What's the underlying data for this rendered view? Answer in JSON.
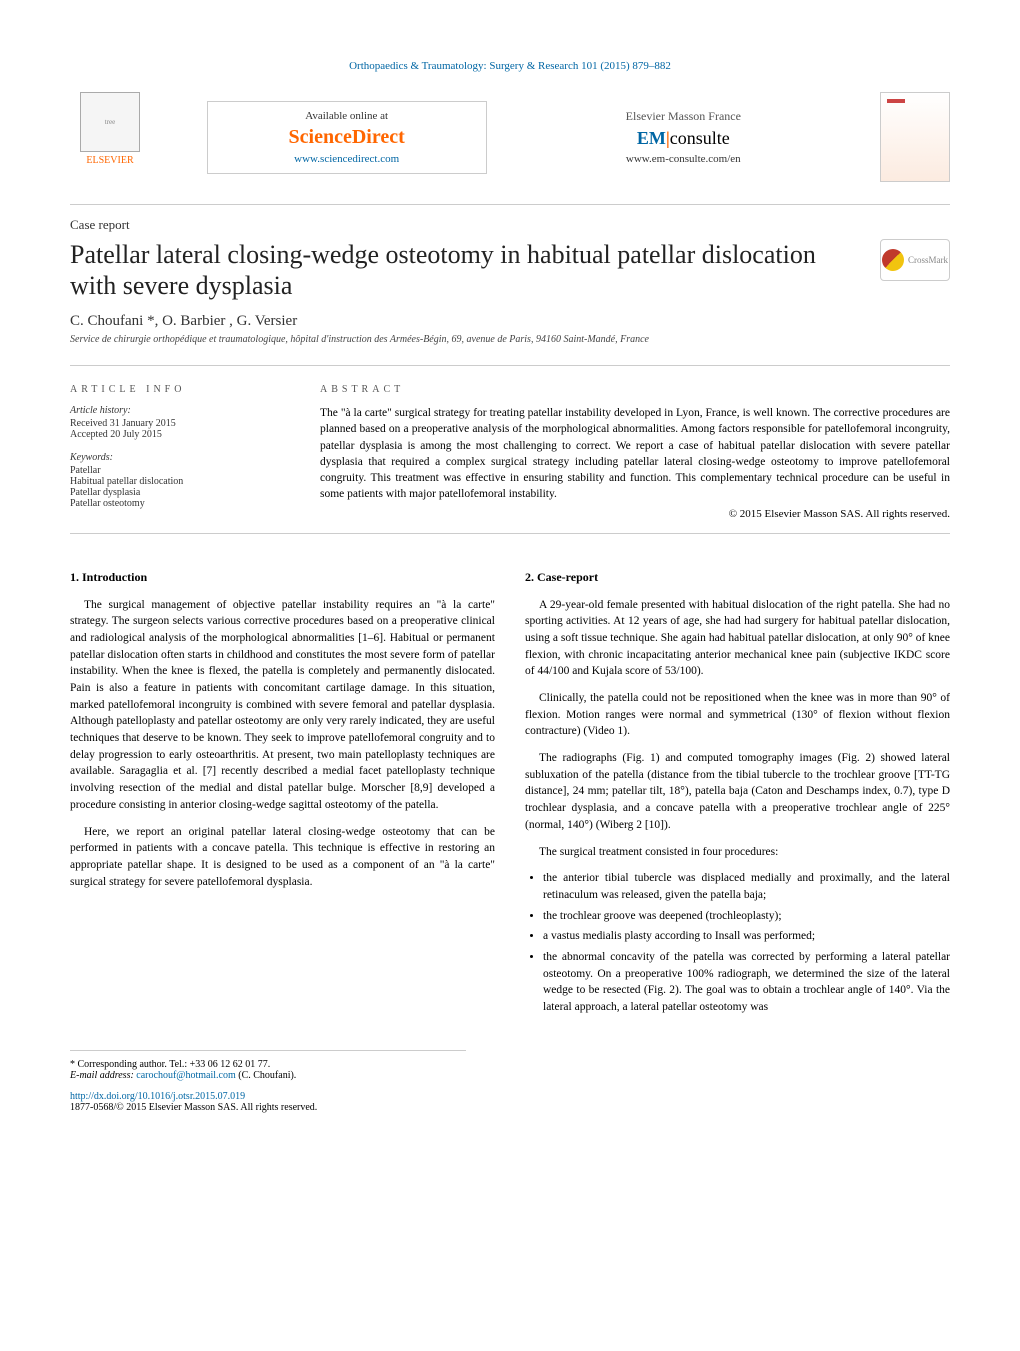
{
  "header": {
    "journal_ref": "Orthopaedics & Traumatology: Surgery & Research 101 (2015) 879–882",
    "sd_available": "Available online at",
    "sd_logo": "ScienceDirect",
    "sd_link": "www.sciencedirect.com",
    "em_elsevier": "Elsevier Masson France",
    "em_logo_em": "EM",
    "em_logo_consulte": "consulte",
    "em_link": "www.em-consulte.com/en",
    "elsevier_label": "ELSEVIER"
  },
  "article": {
    "type_label": "Case report",
    "title": "Patellar lateral closing-wedge osteotomy in habitual patellar dislocation with severe dysplasia",
    "authors": "C. Choufani *, O. Barbier , G. Versier",
    "affiliation": "Service de chirurgie orthopédique et traumatologique, hôpital d'instruction des Armées-Bégin, 69, avenue de Paris, 94160 Saint-Mandé, France",
    "crossmark_label": "CrossMark"
  },
  "info": {
    "heading": "ARTICLE INFO",
    "history_label": "Article history:",
    "received": "Received 31 January 2015",
    "accepted": "Accepted 20 July 2015",
    "keywords_label": "Keywords:",
    "keywords": [
      "Patellar",
      "Habitual patellar dislocation",
      "Patellar dysplasia",
      "Patellar osteotomy"
    ]
  },
  "abstract": {
    "heading": "ABSTRACT",
    "text": "The \"à la carte\" surgical strategy for treating patellar instability developed in Lyon, France, is well known. The corrective procedures are planned based on a preoperative analysis of the morphological abnormalities. Among factors responsible for patellofemoral incongruity, patellar dysplasia is among the most challenging to correct. We report a case of habitual patellar dislocation with severe patellar dysplasia that required a complex surgical strategy including patellar lateral closing-wedge osteotomy to improve patellofemoral congruity. This treatment was effective in ensuring stability and function. This complementary technical procedure can be useful in some patients with major patellofemoral instability.",
    "copyright": "© 2015 Elsevier Masson SAS. All rights reserved."
  },
  "body": {
    "intro_heading": "1. Introduction",
    "intro_p1": "The surgical management of objective patellar instability requires an \"à la carte\" strategy. The surgeon selects various corrective procedures based on a preoperative clinical and radiological analysis of the morphological abnormalities [1–6]. Habitual or permanent patellar dislocation often starts in childhood and constitutes the most severe form of patellar instability. When the knee is flexed, the patella is completely and permanently dislocated. Pain is also a feature in patients with concomitant cartilage damage. In this situation, marked patellofemoral incongruity is combined with severe femoral and patellar dysplasia. Although patelloplasty and patellar osteotomy are only very rarely indicated, they are useful techniques that deserve to be known. They seek to improve patellofemoral congruity and to delay progression to early osteoarthritis. At present, two main patelloplasty techniques are available. Saragaglia et al. [7] recently described a medial facet patelloplasty technique involving resection of the medial and distal patellar bulge. Morscher [8,9] developed a procedure consisting in anterior closing-wedge sagittal osteotomy of the patella.",
    "intro_p2": "Here, we report an original patellar lateral closing-wedge osteotomy that can be performed in patients with a concave patella. This technique is effective in restoring an appropriate patellar shape. It is designed to be used as a component of an \"à la carte\" surgical strategy for severe patellofemoral dysplasia.",
    "case_heading": "2. Case-report",
    "case_p1": "A 29-year-old female presented with habitual dislocation of the right patella. She had no sporting activities. At 12 years of age, she had had surgery for habitual patellar dislocation, using a soft tissue technique. She again had habitual patellar dislocation, at only 90° of knee flexion, with chronic incapacitating anterior mechanical knee pain (subjective IKDC score of 44/100 and Kujala score of 53/100).",
    "case_p2": "Clinically, the patella could not be repositioned when the knee was in more than 90° of flexion. Motion ranges were normal and symmetrical (130° of flexion without flexion contracture) (Video 1).",
    "case_p3": "The radiographs (Fig. 1) and computed tomography images (Fig. 2) showed lateral subluxation of the patella (distance from the tibial tubercle to the trochlear groove [TT-TG distance], 24 mm; patellar tilt, 18°), patella baja (Caton and Deschamps index, 0.7), type D trochlear dysplasia, and a concave patella with a preoperative trochlear angle of 225° (normal, 140°) (Wiberg 2 [10]).",
    "case_p4": "The surgical treatment consisted in four procedures:",
    "bullets": [
      "the anterior tibial tubercle was displaced medially and proximally, and the lateral retinaculum was released, given the patella baja;",
      "the trochlear groove was deepened (trochleoplasty);",
      "a vastus medialis plasty according to Insall was performed;",
      "the abnormal concavity of the patella was corrected by performing a lateral patellar osteotomy. On a preoperative 100% radiograph, we determined the size of the lateral wedge to be resected (Fig. 2). The goal was to obtain a trochlear angle of 140°. Via the lateral approach, a lateral patellar osteotomy was"
    ]
  },
  "footnotes": {
    "corresponding": "* Corresponding author. Tel.: +33 06 12 62 01 77.",
    "email_label": "E-mail address:",
    "email": "carochouf@hotmail.com",
    "email_suffix": " (C. Choufani).",
    "doi": "http://dx.doi.org/10.1016/j.otsr.2015.07.019",
    "issn": "1877-0568/© 2015 Elsevier Masson SAS. All rights reserved."
  },
  "colors": {
    "link": "#0066a4",
    "orange": "#ff6600",
    "text": "#000000",
    "border": "#cccccc"
  }
}
